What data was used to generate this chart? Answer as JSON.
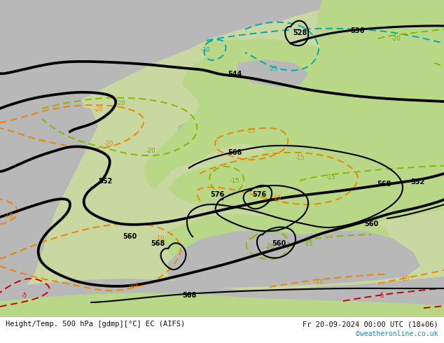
{
  "title_left": "Height/Temp. 500 hPa [gdmp][°C] EC (AIFS)",
  "title_right": "Fr 20-09-2024 00:00 UTC (18+06)",
  "credit": "©weatheronline.co.uk",
  "bg_color": "#c8d8a0",
  "gray_color": "#b8b8b8",
  "land_green": "#b8d888",
  "text_color": "#111111",
  "credit_color": "#2288bb",
  "black": "#000000",
  "orange": "#ee8800",
  "red": "#cc0000",
  "cyan_col": "#00aaaa",
  "green_temp": "#88bb00",
  "figsize": [
    6.34,
    4.9
  ],
  "dpi": 100
}
